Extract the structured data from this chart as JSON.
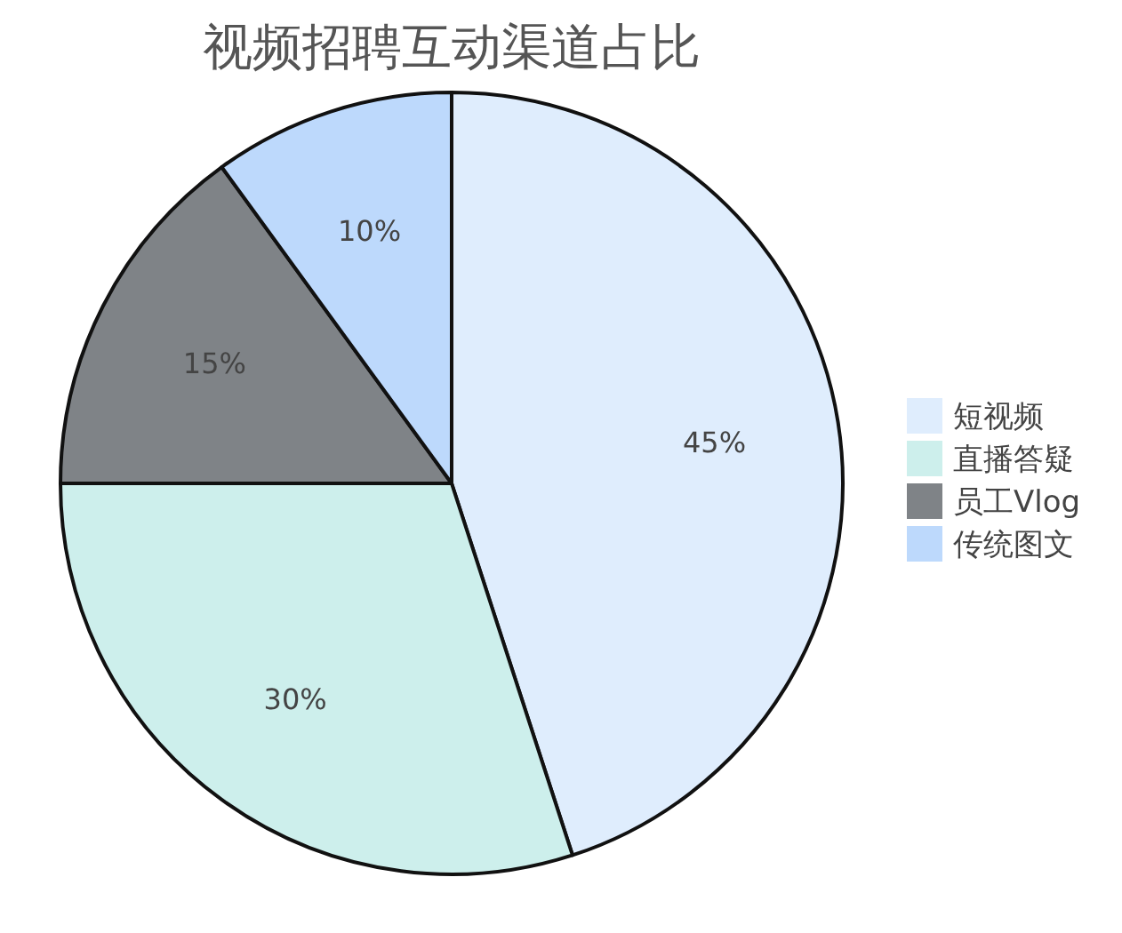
{
  "chart_data": {
    "type": "pie",
    "title": "视频招聘互动渠道占比",
    "categories": [
      "短视频",
      "直播答疑",
      "员工Vlog",
      "传统图文"
    ],
    "values": [
      45,
      30,
      15,
      10
    ],
    "colors": [
      "#dfedfd",
      "#cdefec",
      "#7f8387",
      "#bdd9fc"
    ],
    "value_labels": [
      "45%",
      "30%",
      "15%",
      "10%"
    ],
    "legend": "right"
  }
}
